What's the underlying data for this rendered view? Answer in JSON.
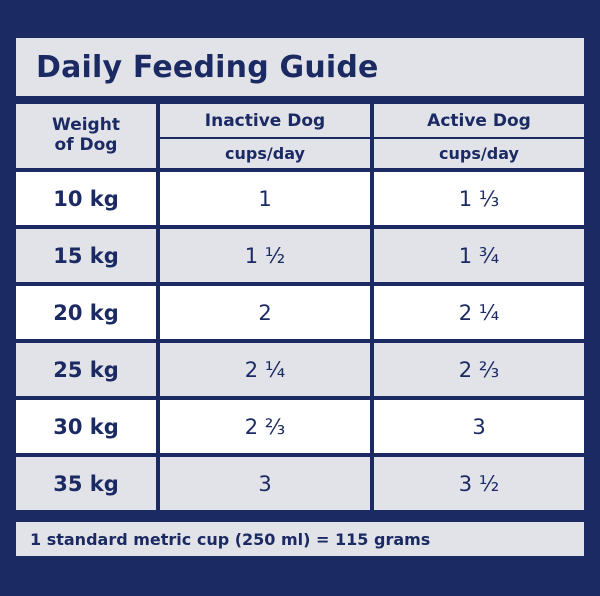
{
  "title": "Daily Feeding Guide",
  "headers": {
    "weight": [
      "Weight",
      "of Dog"
    ],
    "inactive": "Inactive Dog",
    "active": "Active Dog",
    "unit_inactive": "cups/day",
    "unit_active": "cups/day"
  },
  "rows": [
    {
      "weight": "10 kg",
      "inactive": "1",
      "active": "1 ⅓"
    },
    {
      "weight": "15 kg",
      "inactive": "1 ½",
      "active": "1 ¾"
    },
    {
      "weight": "20 kg",
      "inactive": "2",
      "active": "2 ¼"
    },
    {
      "weight": "25 kg",
      "inactive": "2 ¼",
      "active": "2 ⅔"
    },
    {
      "weight": "30 kg",
      "inactive": "2 ⅔",
      "active": "3"
    },
    {
      "weight": "35 kg",
      "inactive": "3",
      "active": "3 ½"
    }
  ],
  "footer": "1 standard metric cup (250 ml) = 115 grams",
  "colors": {
    "navy": "#1b2a63",
    "light_gray": "#e2e3e9",
    "white": "#ffffff"
  }
}
